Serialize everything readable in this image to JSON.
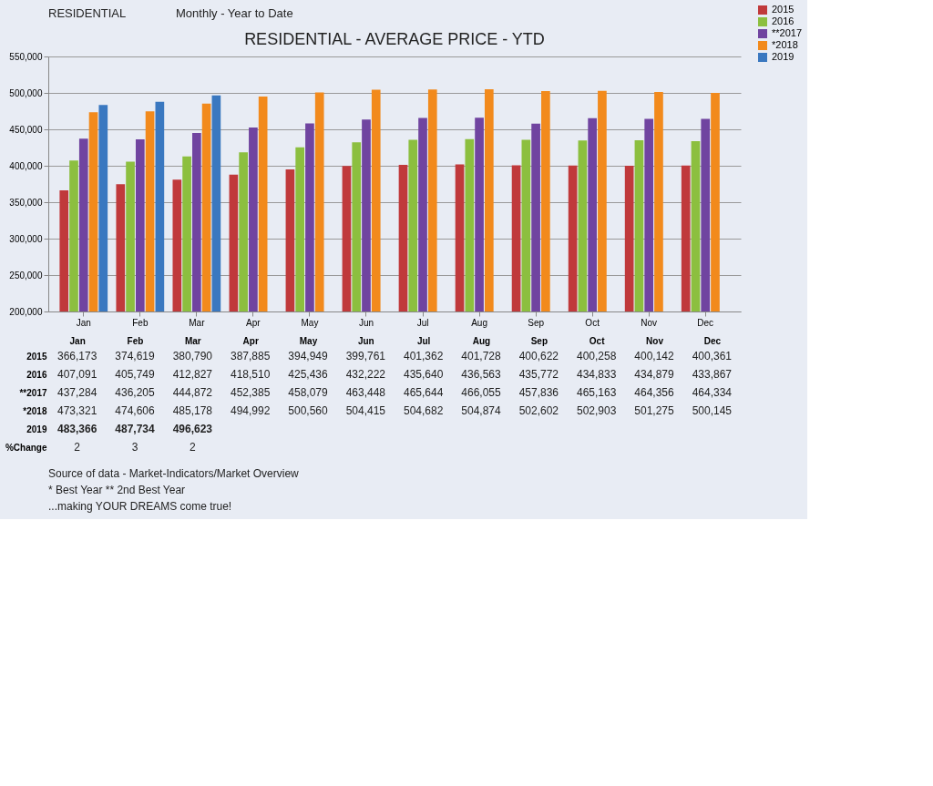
{
  "chart_data": {
    "type": "bar",
    "title": "RESIDENTIAL  - AVERAGE PRICE - YTD",
    "subtitle": "Monthly - Year to Date",
    "categories": [
      "Jan",
      "Feb",
      "Mar",
      "Apr",
      "May",
      "Jun",
      "Jul",
      "Aug",
      "Sep",
      "Oct",
      "Nov",
      "Dec"
    ],
    "series": [
      {
        "name": "2015",
        "color": "#c0393b",
        "values": [
          366173,
          374619,
          380790,
          387885,
          394949,
          399761,
          401362,
          401728,
          400622,
          400258,
          400142,
          400361
        ],
        "value_labels": [
          "366,173",
          "374,619",
          "380,790",
          "387,885",
          "394,949",
          "399,761",
          "401,362",
          "401,728",
          "400,622",
          "400,258",
          "400,142",
          "400,361"
        ]
      },
      {
        "name": "2016",
        "color": "#8cbf3f",
        "values": [
          407091,
          405749,
          412827,
          418510,
          425436,
          432222,
          435640,
          436563,
          435772,
          434833,
          434879,
          433867
        ],
        "value_labels": [
          "407,091",
          "405,749",
          "412,827",
          "418,510",
          "425,436",
          "432,222",
          "435,640",
          "436,563",
          "435,772",
          "434,833",
          "434,879",
          "433,867"
        ]
      },
      {
        "name": "**2017",
        "color": "#7044a0",
        "values": [
          437284,
          436205,
          444872,
          452385,
          458079,
          463448,
          465644,
          466055,
          457836,
          465163,
          464356,
          464334
        ],
        "value_labels": [
          "437,284",
          "436,205",
          "444,872",
          "452,385",
          "458,079",
          "463,448",
          "465,644",
          "466,055",
          "457,836",
          "465,163",
          "464,356",
          "464,334"
        ]
      },
      {
        "name": "*2018",
        "color": "#f28a1c",
        "values": [
          473321,
          474606,
          485178,
          494992,
          500560,
          504415,
          504682,
          504874,
          502602,
          502903,
          501275,
          500145
        ],
        "value_labels": [
          "473,321",
          "474,606",
          "485,178",
          "494,992",
          "500,560",
          "504,415",
          "504,682",
          "504,874",
          "502,602",
          "502,903",
          "501,275",
          "500,145"
        ]
      },
      {
        "name": "2019",
        "color": "#3a78c0",
        "values": [
          483366,
          487734,
          496623,
          null,
          null,
          null,
          null,
          null,
          null,
          null,
          null,
          null
        ],
        "value_labels": [
          "483,366",
          "487,734",
          "496,623",
          null,
          null,
          null,
          null,
          null,
          null,
          null,
          null,
          null
        ]
      }
    ],
    "ylim": [
      200000,
      550000
    ],
    "yticks": [
      {
        "value": 200000,
        "label": "200,000"
      },
      {
        "value": 250000,
        "label": "250,000"
      },
      {
        "value": 300000,
        "label": "300,000"
      },
      {
        "value": 350000,
        "label": "350,000"
      },
      {
        "value": 400000,
        "label": "400,000"
      },
      {
        "value": 450000,
        "label": "450,000"
      },
      {
        "value": 500000,
        "label": "500,000"
      },
      {
        "value": 550000,
        "label": "550,000"
      }
    ],
    "grid": "y",
    "legend": "right",
    "annotations": [
      "RESIDENTIAL",
      "%Change",
      "2",
      "3",
      "2",
      "Source of data - Market-Indicators/Market Overview",
      "* Best Year  ** 2nd Best Year",
      "...making YOUR DREAMS come true!"
    ]
  }
}
